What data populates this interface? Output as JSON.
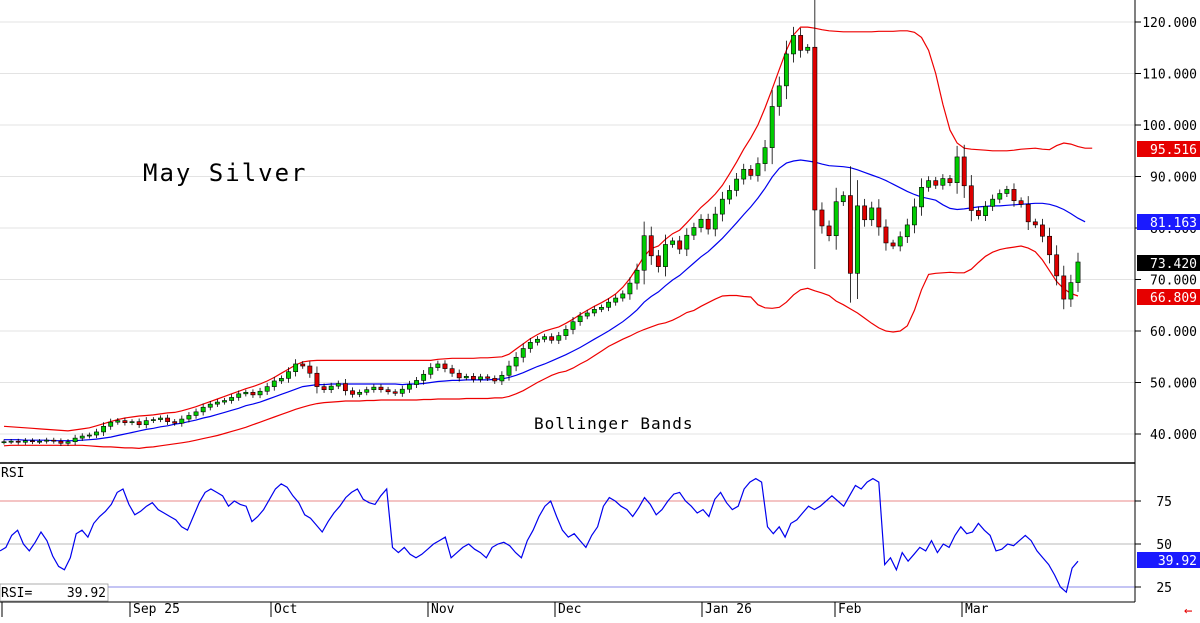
{
  "chart_data": {
    "type": "candlestick",
    "title": "May Silver",
    "annotation": "Bollinger Bands",
    "x_labels": [
      "Sep 25",
      "Oct",
      "Nov",
      "Dec",
      "Jan 26",
      "Feb",
      "Mar"
    ],
    "y_ticks": [
      "40.000",
      "50.000",
      "60.000",
      "70.000",
      "80.000",
      "90.000",
      "100.000",
      "110.000",
      "120.000"
    ],
    "ylim": [
      32,
      123
    ],
    "tags": {
      "upper_band": "95.516",
      "middle_band": "81.163",
      "last_price": "73.420",
      "lower_band": "66.809"
    },
    "colors": {
      "up": "#00cc00",
      "down": "#dd0000",
      "upper_lower_band": "#ee0000",
      "middle_band": "#0000ee",
      "rsi_line": "#0000ee"
    },
    "close": [
      38.5,
      38.6,
      38.4,
      38.7,
      38.5,
      38.6,
      38.8,
      38.6,
      38.2,
      38.5,
      39.2,
      39.6,
      39.8,
      40.4,
      41.5,
      42.3,
      42.6,
      42.2,
      42.4,
      41.8,
      42.6,
      42.8,
      43.1,
      42.4,
      42.1,
      42.9,
      43.6,
      44.3,
      45.2,
      45.8,
      46.2,
      46.5,
      47.1,
      47.8,
      48.1,
      47.6,
      48.3,
      49.2,
      50.3,
      50.8,
      52.1,
      53.6,
      53.2,
      51.8,
      49.2,
      48.6,
      49.3,
      49.8,
      48.4,
      47.7,
      48.1,
      48.6,
      49.1,
      48.6,
      48.2,
      47.9,
      48.7,
      49.6,
      50.4,
      51.6,
      52.9,
      53.6,
      52.7,
      51.8,
      50.9,
      51.2,
      50.6,
      51.1,
      50.8,
      50.3,
      51.4,
      53.2,
      54.9,
      56.6,
      57.8,
      58.4,
      58.9,
      58.2,
      59.1,
      60.3,
      61.8,
      62.9,
      63.5,
      64.2,
      64.6,
      65.6,
      66.4,
      67.2,
      69.3,
      71.8,
      78.5,
      74.6,
      72.5,
      76.8,
      77.5,
      75.9,
      78.6,
      80.1,
      81.7,
      79.8,
      82.7,
      85.6,
      87.3,
      89.5,
      91.4,
      90.2,
      92.5,
      95.6,
      103.6,
      107.6,
      113.8,
      117.4,
      114.5,
      115.1,
      83.5,
      80.4,
      78.5,
      85.1,
      86.3,
      71.2,
      84.3,
      81.6,
      83.9,
      80.2,
      77.1,
      76.5,
      78.3,
      80.6,
      84.1,
      87.9,
      89.2,
      88.3,
      89.6,
      88.8,
      93.8,
      88.2,
      83.4,
      82.4,
      84.2,
      85.6,
      86.7,
      87.5,
      85.3,
      84.6,
      81.2,
      80.6,
      78.4,
      74.8,
      70.7,
      66.2,
      69.4,
      73.4
    ],
    "open": [
      38.4,
      38.5,
      38.6,
      38.4,
      38.7,
      38.5,
      38.6,
      38.8,
      38.6,
      38.2,
      38.5,
      39.2,
      39.6,
      39.8,
      40.4,
      41.5,
      42.3,
      42.6,
      42.2,
      42.4,
      41.8,
      42.6,
      42.8,
      43.1,
      42.4,
      42.1,
      42.9,
      43.6,
      44.3,
      45.2,
      45.8,
      46.2,
      46.5,
      47.1,
      47.8,
      48.1,
      47.6,
      48.3,
      49.2,
      50.3,
      50.8,
      52.1,
      53.6,
      53.2,
      51.8,
      49.2,
      48.6,
      49.3,
      49.8,
      48.4,
      47.7,
      48.1,
      48.6,
      49.1,
      48.6,
      48.2,
      47.9,
      48.7,
      49.6,
      50.4,
      51.6,
      52.9,
      53.6,
      52.7,
      51.8,
      50.9,
      51.2,
      50.6,
      51.1,
      50.8,
      50.3,
      51.4,
      53.2,
      54.9,
      56.6,
      57.8,
      58.4,
      58.9,
      58.2,
      59.1,
      60.3,
      61.8,
      62.9,
      63.5,
      64.2,
      64.6,
      65.6,
      66.4,
      67.2,
      69.3,
      71.8,
      78.5,
      74.6,
      72.5,
      76.8,
      77.5,
      75.9,
      78.6,
      80.1,
      81.7,
      79.8,
      82.7,
      85.6,
      87.3,
      89.5,
      91.4,
      90.2,
      92.5,
      95.6,
      103.6,
      107.6,
      113.8,
      117.4,
      114.5,
      115.1,
      83.5,
      80.4,
      78.5,
      85.1,
      86.3,
      71.2,
      84.3,
      81.6,
      83.9,
      80.2,
      77.1,
      76.5,
      78.3,
      80.6,
      84.1,
      87.9,
      89.2,
      88.3,
      89.6,
      88.8,
      93.8,
      88.2,
      83.4,
      82.4,
      84.2,
      85.6,
      86.7,
      87.5,
      85.3,
      84.6,
      81.2,
      80.6,
      78.4,
      74.8,
      70.7,
      66.2,
      69.4
    ],
    "upper_band": [
      41.5,
      41.4,
      41.3,
      41.2,
      41.1,
      41.0,
      40.9,
      40.8,
      40.7,
      40.6,
      40.8,
      41.0,
      41.2,
      41.6,
      42.0,
      42.4,
      42.8,
      43.1,
      43.3,
      43.5,
      43.6,
      43.7,
      43.9,
      44.1,
      44.2,
      44.5,
      44.9,
      45.3,
      45.8,
      46.3,
      46.8,
      47.3,
      47.8,
      48.3,
      48.8,
      49.2,
      49.7,
      50.3,
      51.0,
      51.8,
      52.6,
      53.4,
      54.0,
      54.2,
      54.3,
      54.3,
      54.3,
      54.3,
      54.3,
      54.3,
      54.3,
      54.3,
      54.3,
      54.3,
      54.3,
      54.3,
      54.3,
      54.3,
      54.3,
      54.3,
      54.3,
      54.5,
      54.6,
      54.7,
      54.7,
      54.7,
      54.7,
      54.8,
      54.8,
      54.9,
      55.0,
      55.5,
      56.5,
      57.5,
      58.5,
      59.3,
      60.0,
      60.4,
      60.8,
      61.5,
      62.3,
      63.2,
      64.0,
      64.8,
      65.5,
      66.3,
      67.2,
      68.5,
      70.2,
      72.3,
      74.5,
      76.0,
      76.5,
      77.8,
      78.9,
      79.6,
      81.0,
      82.5,
      84.0,
      85.2,
      86.6,
      88.3,
      90.5,
      92.8,
      95.3,
      97.5,
      100.0,
      103.3,
      107.0,
      110.8,
      114.5,
      117.5,
      119.0,
      119.0,
      118.8,
      118.5,
      118.3,
      118.2,
      118.1,
      118.1,
      118.1,
      118.1,
      118.1,
      118.2,
      118.2,
      118.2,
      118.3,
      118.3,
      118.0,
      117.0,
      114.5,
      110.0,
      104.0,
      99.0,
      96.5,
      95.5,
      95.3,
      95.2,
      95.1,
      95.0,
      95.0,
      95.0,
      95.1,
      95.3,
      95.4,
      95.5,
      95.3,
      95.2,
      96.0,
      96.5,
      96.3,
      95.8,
      95.5,
      95.5
    ],
    "middle_band": [
      38.9,
      38.9,
      38.9,
      38.8,
      38.8,
      38.8,
      38.8,
      38.7,
      38.7,
      38.7,
      38.7,
      38.8,
      38.9,
      39.0,
      39.2,
      39.4,
      39.7,
      40.0,
      40.3,
      40.6,
      40.9,
      41.1,
      41.4,
      41.6,
      41.9,
      42.1,
      42.4,
      42.7,
      43.1,
      43.4,
      43.8,
      44.2,
      44.6,
      45.0,
      45.5,
      45.8,
      46.2,
      46.7,
      47.2,
      47.7,
      48.2,
      48.7,
      49.2,
      49.4,
      49.6,
      49.6,
      49.7,
      49.7,
      49.7,
      49.7,
      49.7,
      49.7,
      49.7,
      49.7,
      49.7,
      49.7,
      49.6,
      49.7,
      49.7,
      49.8,
      50.0,
      50.2,
      50.3,
      50.4,
      50.4,
      50.5,
      50.5,
      50.5,
      50.5,
      50.6,
      50.7,
      51.0,
      51.4,
      51.9,
      52.5,
      53.1,
      53.6,
      54.2,
      54.8,
      55.4,
      56.1,
      56.8,
      57.6,
      58.4,
      59.2,
      60.0,
      60.9,
      61.8,
      62.9,
      64.1,
      65.6,
      66.7,
      67.6,
      68.8,
      69.9,
      70.8,
      72.0,
      73.2,
      74.4,
      75.4,
      76.7,
      78.0,
      79.5,
      81.0,
      82.6,
      84.1,
      85.8,
      87.7,
      89.9,
      91.6,
      92.6,
      93.0,
      93.2,
      93.0,
      92.8,
      92.4,
      92.1,
      92.0,
      91.9,
      91.7,
      91.3,
      90.8,
      90.3,
      89.8,
      89.2,
      88.5,
      87.8,
      87.1,
      86.5,
      86.0,
      85.7,
      85.4,
      84.5,
      83.8,
      83.6,
      83.7,
      83.9,
      84.1,
      84.2,
      84.3,
      84.3,
      84.4,
      84.5,
      84.6,
      84.7,
      84.8,
      84.8,
      84.6,
      84.2,
      83.6,
      82.8,
      81.9,
      81.2
    ],
    "lower_band": [
      37.7,
      37.8,
      37.8,
      37.8,
      37.8,
      37.8,
      37.8,
      37.8,
      37.8,
      37.8,
      37.8,
      37.8,
      37.7,
      37.6,
      37.5,
      37.5,
      37.4,
      37.3,
      37.3,
      37.2,
      37.4,
      37.5,
      37.7,
      37.9,
      38.1,
      38.3,
      38.5,
      38.8,
      39.1,
      39.4,
      39.7,
      40.1,
      40.5,
      40.9,
      41.3,
      41.8,
      42.3,
      42.8,
      43.3,
      43.8,
      44.3,
      44.8,
      45.2,
      45.6,
      45.9,
      46.1,
      46.2,
      46.3,
      46.4,
      46.4,
      46.4,
      46.5,
      46.5,
      46.6,
      46.6,
      46.6,
      46.6,
      46.6,
      46.6,
      46.7,
      46.7,
      46.8,
      46.8,
      46.8,
      46.8,
      46.9,
      46.9,
      46.9,
      46.9,
      47.0,
      47.0,
      47.3,
      47.8,
      48.4,
      49.2,
      50.0,
      50.7,
      51.4,
      51.9,
      52.2,
      52.8,
      53.6,
      54.3,
      55.2,
      56.1,
      57.0,
      57.7,
      58.4,
      59.0,
      59.7,
      60.3,
      60.8,
      61.3,
      61.6,
      62.1,
      62.8,
      63.6,
      64.0,
      64.8,
      65.5,
      66.2,
      66.8,
      66.9,
      66.9,
      66.7,
      66.6,
      65.1,
      64.5,
      64.4,
      64.6,
      65.6,
      67.0,
      68.0,
      68.3,
      67.8,
      67.4,
      66.9,
      65.8,
      65.1,
      64.3,
      63.5,
      62.5,
      61.5,
      60.6,
      60.0,
      59.8,
      60.0,
      61.0,
      64.0,
      68.0,
      71.0,
      71.2,
      71.3,
      71.4,
      71.3,
      71.3,
      72.0,
      73.3,
      74.5,
      75.3,
      75.8,
      76.1,
      76.3,
      76.5,
      76.1,
      75.4,
      73.8,
      71.7,
      69.6,
      68.2,
      67.3,
      66.8
    ],
    "rsi": {
      "label": "RSI",
      "value_label": "RSI=",
      "value": "39.92",
      "ticks": [
        "75",
        "50",
        "25"
      ],
      "levels": [
        75,
        50,
        25
      ],
      "series": [
        46,
        48,
        55,
        58,
        50,
        46,
        51,
        57,
        52,
        43,
        37,
        35,
        42,
        56,
        58,
        54,
        62,
        66,
        69,
        73,
        80,
        82,
        73,
        67,
        69,
        72,
        74,
        70,
        68,
        66,
        64,
        60,
        58,
        66,
        74,
        80,
        82,
        80,
        78,
        72,
        75,
        73,
        72,
        63,
        66,
        70,
        76,
        82,
        85,
        83,
        78,
        74,
        67,
        65,
        61,
        57,
        63,
        68,
        72,
        77,
        80,
        82,
        76,
        74,
        73,
        78,
        82,
        48,
        45,
        48,
        44,
        42,
        44,
        47,
        50,
        52,
        54,
        42,
        45,
        48,
        50,
        47,
        45,
        42,
        48,
        50,
        51,
        49,
        45,
        42,
        52,
        58,
        66,
        72,
        75,
        66,
        58,
        54,
        56,
        52,
        48,
        55,
        60,
        72,
        77,
        75,
        72,
        70,
        66,
        71,
        77,
        73,
        67,
        70,
        75,
        79,
        80,
        75,
        72,
        68,
        70,
        66,
        76,
        80,
        74,
        70,
        72,
        82,
        86,
        88,
        86,
        60,
        56,
        60,
        54,
        62,
        64,
        68,
        72,
        70,
        72,
        75,
        78,
        75,
        72,
        78,
        84,
        82,
        86,
        88,
        86,
        38,
        42,
        35,
        45,
        40,
        44,
        48,
        46,
        52,
        45,
        50,
        48,
        55,
        60,
        56,
        57,
        62,
        58,
        55,
        46,
        47,
        50,
        49,
        52,
        55,
        52,
        46,
        42,
        38,
        32,
        25,
        22,
        36,
        40
      ]
    }
  }
}
